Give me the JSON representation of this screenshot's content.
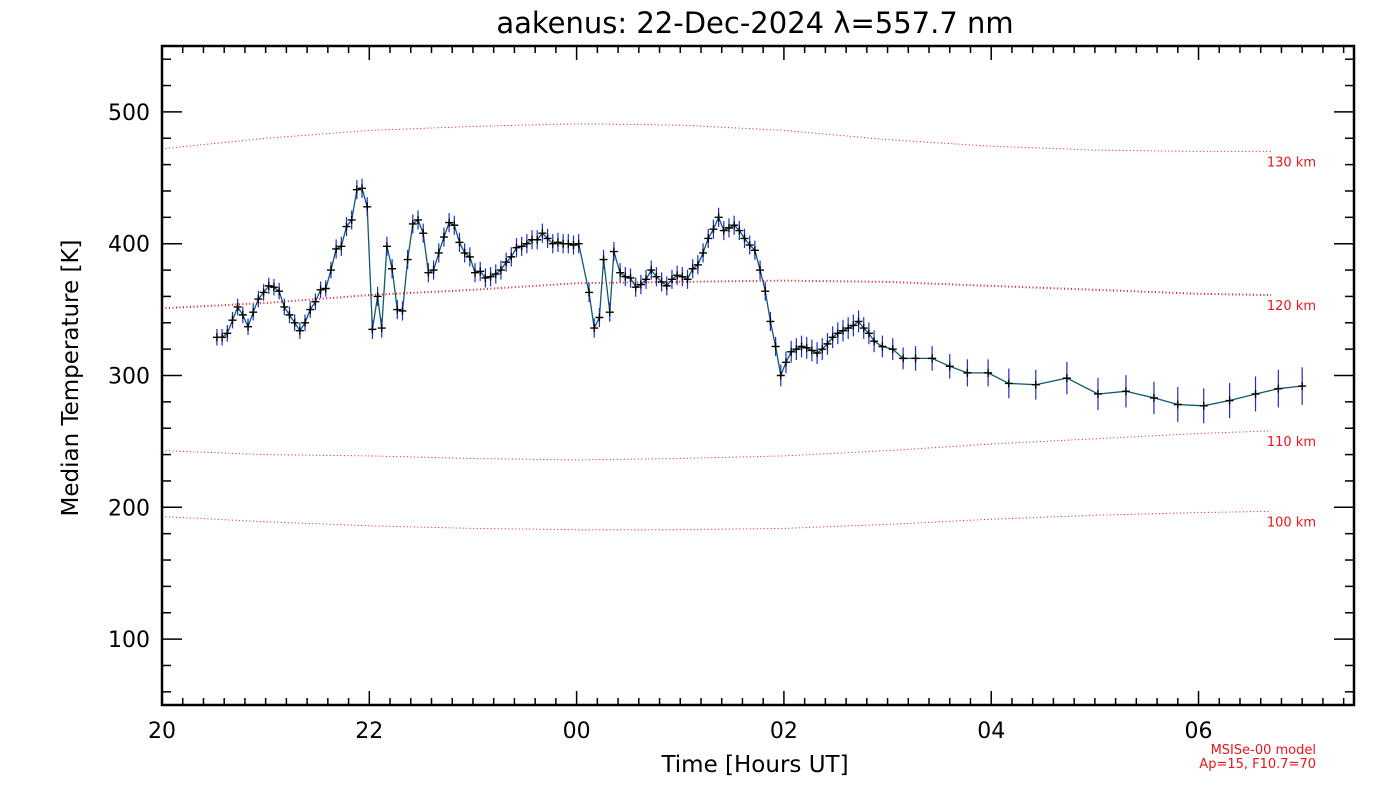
{
  "chart_data": {
    "type": "line",
    "title": "aakenus: 22-Dec-2024 λ=557.7 nm",
    "xlabel": "Time [Hours UT]",
    "ylabel": "Median Temperature [K]",
    "xlim": [
      20,
      31.5
    ],
    "ylim": [
      50,
      550
    ],
    "x_ticks": [
      {
        "value": 20,
        "label": "20"
      },
      {
        "value": 22,
        "label": "22"
      },
      {
        "value": 24,
        "label": "00"
      },
      {
        "value": 26,
        "label": "02"
      },
      {
        "value": 28,
        "label": "04"
      },
      {
        "value": 30,
        "label": "06"
      }
    ],
    "y_ticks": [
      {
        "value": 100,
        "label": "100"
      },
      {
        "value": 200,
        "label": "200"
      },
      {
        "value": 300,
        "label": "300"
      },
      {
        "value": 400,
        "label": "400"
      },
      {
        "value": 500,
        "label": "500"
      }
    ],
    "grid": false,
    "series": [
      {
        "color": "#0f5a6e",
        "error_color": "#1d2bd0",
        "points": [
          [
            20.53,
            329,
            4
          ],
          [
            20.58,
            329,
            4
          ],
          [
            20.63,
            332,
            4
          ],
          [
            20.68,
            342,
            4
          ],
          [
            20.73,
            352,
            4
          ],
          [
            20.78,
            346,
            4
          ],
          [
            20.83,
            337,
            4
          ],
          [
            20.88,
            348,
            4
          ],
          [
            20.93,
            358,
            4
          ],
          [
            20.98,
            363,
            4
          ],
          [
            21.03,
            368,
            4
          ],
          [
            21.08,
            367,
            4
          ],
          [
            21.13,
            364,
            4
          ],
          [
            21.18,
            352,
            4
          ],
          [
            21.23,
            346,
            4
          ],
          [
            21.28,
            340,
            4
          ],
          [
            21.33,
            334,
            4
          ],
          [
            21.38,
            340,
            4
          ],
          [
            21.43,
            350,
            4
          ],
          [
            21.48,
            356,
            4
          ],
          [
            21.53,
            365,
            4
          ],
          [
            21.58,
            366,
            4
          ],
          [
            21.63,
            380,
            4
          ],
          [
            21.68,
            396,
            5
          ],
          [
            21.73,
            398,
            5
          ],
          [
            21.78,
            413,
            5
          ],
          [
            21.83,
            418,
            5
          ],
          [
            21.88,
            441,
            5
          ],
          [
            21.93,
            442,
            5
          ],
          [
            21.98,
            428,
            5
          ],
          [
            22.03,
            335,
            5
          ],
          [
            22.08,
            360,
            5
          ],
          [
            22.12,
            336,
            5
          ],
          [
            22.17,
            398,
            5
          ],
          [
            22.22,
            381,
            5
          ],
          [
            22.27,
            350,
            5
          ],
          [
            22.32,
            349,
            5
          ],
          [
            22.37,
            388,
            5
          ],
          [
            22.42,
            415,
            5
          ],
          [
            22.47,
            418,
            5
          ],
          [
            22.52,
            408,
            5
          ],
          [
            22.57,
            378,
            5
          ],
          [
            22.62,
            380,
            5
          ],
          [
            22.67,
            393,
            5
          ],
          [
            22.72,
            405,
            5
          ],
          [
            22.77,
            416,
            5
          ],
          [
            22.82,
            414,
            5
          ],
          [
            22.87,
            401,
            5
          ],
          [
            22.92,
            393,
            5
          ],
          [
            22.97,
            390,
            5
          ],
          [
            23.02,
            378,
            5
          ],
          [
            23.07,
            379,
            5
          ],
          [
            23.12,
            374,
            5
          ],
          [
            23.17,
            375,
            5
          ],
          [
            23.22,
            377,
            5
          ],
          [
            23.27,
            380,
            5
          ],
          [
            23.32,
            386,
            5
          ],
          [
            23.37,
            390,
            5
          ],
          [
            23.42,
            397,
            5
          ],
          [
            23.47,
            398,
            5
          ],
          [
            23.52,
            400,
            5
          ],
          [
            23.57,
            403,
            5
          ],
          [
            23.62,
            403,
            5
          ],
          [
            23.67,
            408,
            5
          ],
          [
            23.72,
            404,
            5
          ],
          [
            23.77,
            400,
            5
          ],
          [
            23.82,
            401,
            5
          ],
          [
            23.87,
            400,
            5
          ],
          [
            23.92,
            400,
            5
          ],
          [
            23.97,
            399,
            5
          ],
          [
            24.02,
            400,
            5
          ],
          [
            24.12,
            363,
            5
          ],
          [
            24.17,
            336,
            5
          ],
          [
            24.22,
            344,
            5
          ],
          [
            24.26,
            388,
            5
          ],
          [
            24.32,
            348,
            5
          ],
          [
            24.36,
            394,
            5
          ],
          [
            24.42,
            378,
            5
          ],
          [
            24.47,
            375,
            5
          ],
          [
            24.52,
            374,
            5
          ],
          [
            24.57,
            367,
            5
          ],
          [
            24.62,
            369,
            5
          ],
          [
            24.67,
            373,
            5
          ],
          [
            24.72,
            380,
            5
          ],
          [
            24.77,
            375,
            5
          ],
          [
            24.82,
            371,
            5
          ],
          [
            24.87,
            368,
            5
          ],
          [
            24.92,
            373,
            5
          ],
          [
            24.97,
            376,
            5
          ],
          [
            25.02,
            375,
            5
          ],
          [
            25.07,
            373,
            5
          ],
          [
            25.12,
            381,
            5
          ],
          [
            25.17,
            384,
            5
          ],
          [
            25.22,
            393,
            5
          ],
          [
            25.27,
            404,
            5
          ],
          [
            25.32,
            411,
            5
          ],
          [
            25.37,
            420,
            5
          ],
          [
            25.42,
            410,
            5
          ],
          [
            25.47,
            412,
            5
          ],
          [
            25.52,
            414,
            5
          ],
          [
            25.57,
            410,
            5
          ],
          [
            25.62,
            404,
            5
          ],
          [
            25.67,
            399,
            5
          ],
          [
            25.72,
            395,
            5
          ],
          [
            25.77,
            380,
            5
          ],
          [
            25.82,
            364,
            5
          ],
          [
            25.87,
            341,
            5
          ],
          [
            25.92,
            322,
            5
          ],
          [
            25.97,
            300,
            6
          ],
          [
            26.02,
            310,
            6
          ],
          [
            26.07,
            318,
            6
          ],
          [
            26.12,
            320,
            6
          ],
          [
            26.17,
            322,
            6
          ],
          [
            26.22,
            321,
            6
          ],
          [
            26.27,
            319,
            6
          ],
          [
            26.32,
            317,
            6
          ],
          [
            26.37,
            320,
            6
          ],
          [
            26.42,
            324,
            6
          ],
          [
            26.47,
            329,
            6
          ],
          [
            26.52,
            332,
            6
          ],
          [
            26.57,
            334,
            6
          ],
          [
            26.62,
            336,
            6
          ],
          [
            26.67,
            338,
            6
          ],
          [
            26.72,
            341,
            6
          ],
          [
            26.77,
            336,
            6
          ],
          [
            26.82,
            332,
            6
          ],
          [
            26.87,
            326,
            6
          ],
          [
            26.95,
            322,
            6
          ],
          [
            27.05,
            320,
            6
          ],
          [
            27.15,
            313,
            6
          ],
          [
            27.27,
            313,
            7
          ],
          [
            27.43,
            313,
            7
          ],
          [
            27.6,
            307,
            7
          ],
          [
            27.77,
            302,
            8
          ],
          [
            27.97,
            302,
            8
          ],
          [
            28.17,
            294,
            9
          ],
          [
            28.43,
            293,
            9
          ],
          [
            28.73,
            298,
            10
          ],
          [
            29.03,
            286,
            10
          ],
          [
            29.3,
            288,
            10
          ],
          [
            29.57,
            283,
            10
          ],
          [
            29.8,
            278,
            11
          ],
          [
            30.05,
            277,
            11
          ],
          [
            30.3,
            281,
            11
          ],
          [
            30.55,
            286,
            11
          ],
          [
            30.77,
            290,
            12
          ],
          [
            31.0,
            292,
            12
          ]
        ]
      }
    ],
    "model_curves": [
      {
        "label": "130 km",
        "width": 1,
        "points": [
          [
            20,
            472
          ],
          [
            21,
            480
          ],
          [
            22,
            486
          ],
          [
            23,
            489
          ],
          [
            24,
            491
          ],
          [
            25,
            490
          ],
          [
            26,
            486
          ],
          [
            27,
            479
          ],
          [
            28,
            474
          ],
          [
            29,
            471
          ],
          [
            30,
            470
          ],
          [
            30.7,
            470
          ]
        ]
      },
      {
        "label": "120 km",
        "width": 2,
        "points": [
          [
            20,
            351
          ],
          [
            21,
            355
          ],
          [
            22,
            361
          ],
          [
            23,
            365
          ],
          [
            24,
            370
          ],
          [
            25,
            371
          ],
          [
            26,
            372
          ],
          [
            27,
            371
          ],
          [
            28,
            368
          ],
          [
            29,
            365
          ],
          [
            30,
            362
          ],
          [
            30.7,
            361
          ]
        ]
      },
      {
        "label": "110 km",
        "width": 1,
        "points": [
          [
            20,
            243
          ],
          [
            21,
            240
          ],
          [
            22,
            239
          ],
          [
            23,
            237
          ],
          [
            24,
            236
          ],
          [
            25,
            237
          ],
          [
            26,
            239
          ],
          [
            27,
            243
          ],
          [
            28,
            248
          ],
          [
            29,
            252
          ],
          [
            30,
            256
          ],
          [
            30.7,
            258
          ]
        ]
      },
      {
        "label": "100 km",
        "width": 1,
        "points": [
          [
            20,
            193
          ],
          [
            21,
            189
          ],
          [
            22,
            186
          ],
          [
            23,
            184
          ],
          [
            24,
            183
          ],
          [
            25,
            183
          ],
          [
            26,
            184
          ],
          [
            27,
            187
          ],
          [
            28,
            191
          ],
          [
            29,
            194
          ],
          [
            30,
            196
          ],
          [
            30.7,
            197
          ]
        ]
      }
    ],
    "model_note": [
      "MSISe-00 model",
      "Ap=15, F10.7=70"
    ],
    "colors": {
      "axes": "#000000",
      "model": "#e8161b",
      "line": "#0f5a6e",
      "errors": "#1d2bd0",
      "markers": "#000000"
    }
  }
}
